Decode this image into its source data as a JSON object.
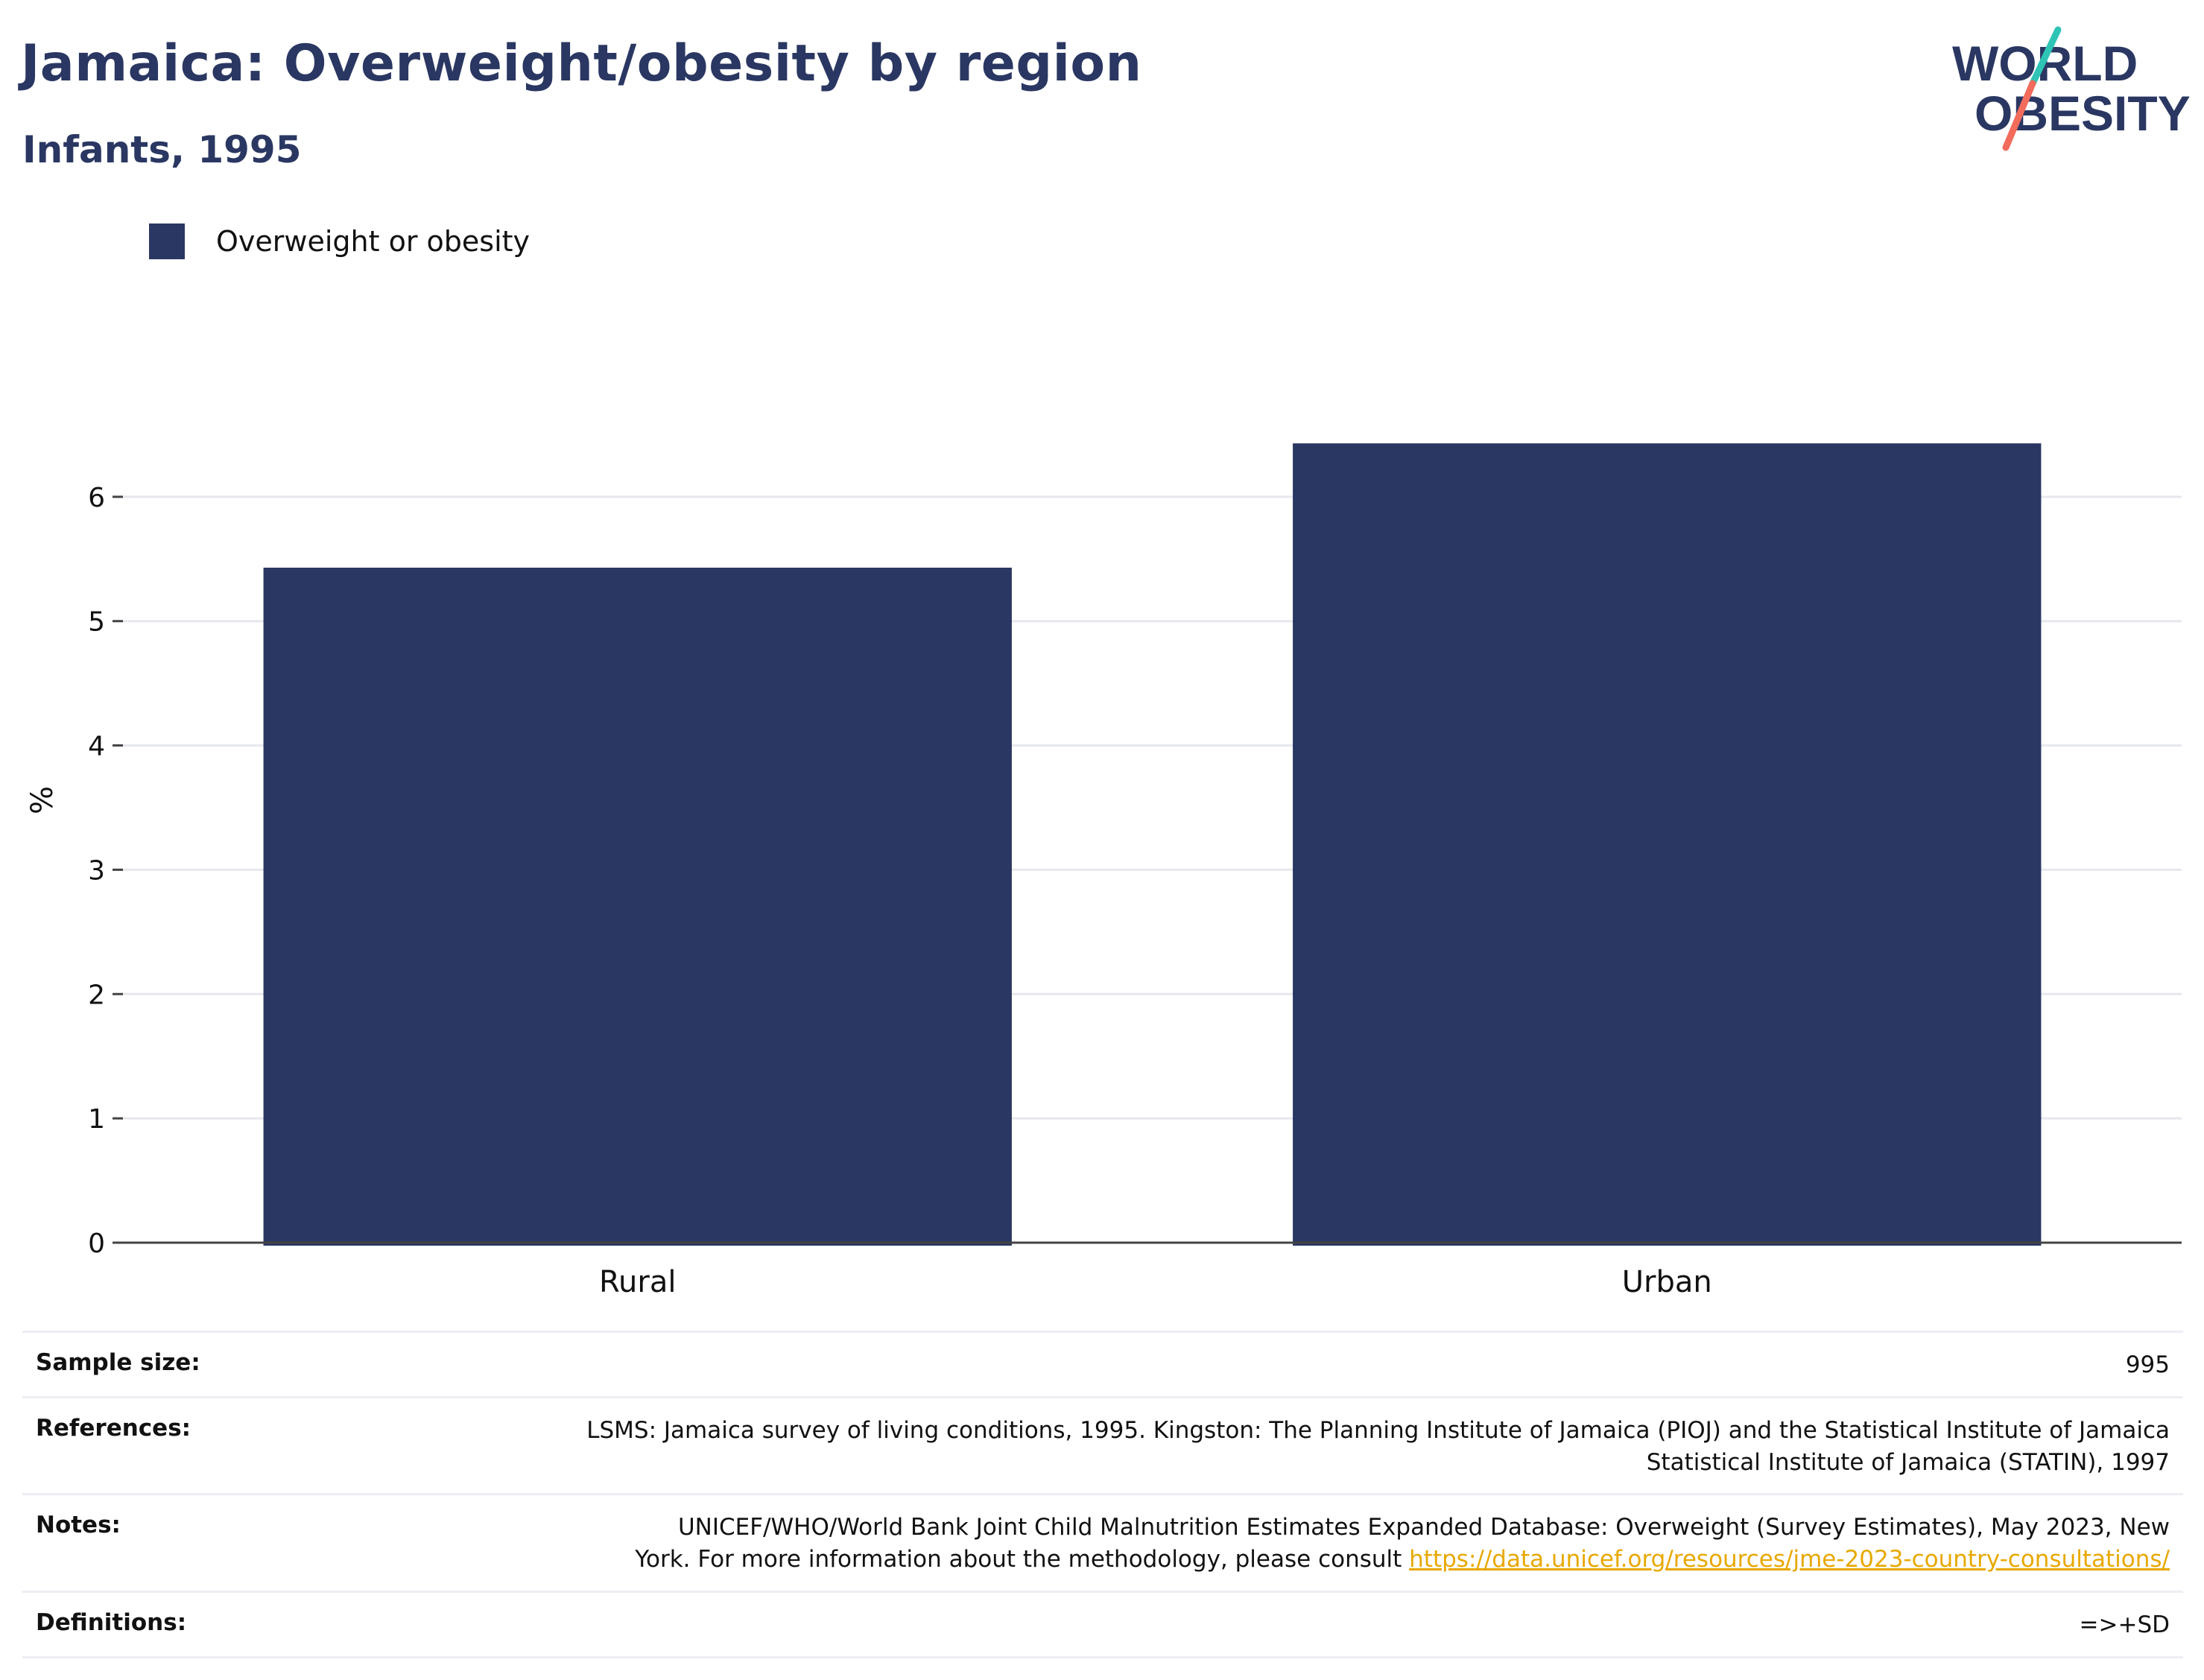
{
  "header": {
    "title": "Jamaica: Overweight/obesity by region",
    "subtitle": "Infants, 1995"
  },
  "logo": {
    "line1": "WORLD",
    "line2": "OBESITY",
    "colors": {
      "navy": "#2a3762",
      "teal": "#2ec4b6",
      "coral": "#f26b5b"
    }
  },
  "legend": {
    "label": "Overweight or obesity",
    "color": "#2a3762"
  },
  "chart_data": {
    "type": "bar",
    "categories": [
      "Rural",
      "Urban"
    ],
    "series": [
      {
        "name": "Overweight or obesity",
        "values": [
          5.43,
          6.43
        ],
        "color": "#2a3762"
      }
    ],
    "ylabel": "%",
    "ylim": [
      0,
      7
    ],
    "yticks": [
      0,
      1,
      2,
      3,
      4,
      5,
      6
    ],
    "grid": true,
    "legend_position": "top-left"
  },
  "info": {
    "sample_size_label": "Sample size:",
    "sample_size_value": "995",
    "references_label": "References:",
    "references_line1": "LSMS: Jamaica survey of living conditions, 1995. Kingston: The Planning Institute of Jamaica (PIOJ) and the Statistical Institute of Jamaica",
    "references_line2": "Statistical Institute of Jamaica (STATIN), 1997",
    "notes_label": "Notes:",
    "notes_line1": "UNICEF/WHO/World Bank Joint Child Malnutrition Estimates Expanded Database: Overweight (Survey Estimates), May 2023, New",
    "notes_line2_prefix": "York. For more information about the methodology, please consult ",
    "notes_link": "https://data.unicef.org/resources/jme-2023-country-consultations/",
    "definitions_label": "Definitions:",
    "definitions_value": "=>+SD"
  }
}
